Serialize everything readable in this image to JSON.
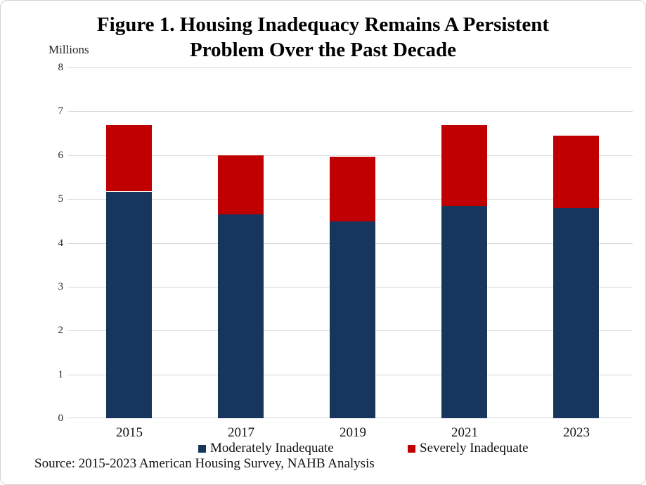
{
  "chart_data": {
    "type": "bar",
    "stacked": true,
    "title": "Figure 1. Housing Inadequacy Remains A Persistent Problem Over the Past Decade",
    "title_lines": [
      "Figure 1. Housing Inadequacy Remains A Persistent",
      "Problem Over the Past Decade"
    ],
    "axis_unit_label": "Millions",
    "categories": [
      "2015",
      "2017",
      "2019",
      "2021",
      "2023"
    ],
    "series": [
      {
        "name": "Moderately Inadequate",
        "color": "#17365D",
        "values": [
          5.17,
          4.65,
          4.49,
          4.84,
          4.8
        ]
      },
      {
        "name": "Severely Inadequate",
        "color": "#C00000",
        "values": [
          1.51,
          1.35,
          1.47,
          1.85,
          1.65
        ]
      }
    ],
    "totals": [
      6.68,
      6.0,
      5.96,
      6.69,
      6.45
    ],
    "ylim": [
      0,
      8
    ],
    "ytick_step": 1,
    "yticks": [
      8,
      7,
      6,
      5,
      4,
      3,
      2,
      1,
      0
    ],
    "grid": true,
    "legend_position": "bottom",
    "colors": {
      "gridline": "#d9d9d9",
      "title_text": "#000000",
      "tick_text": "#262626"
    }
  },
  "source_note": "Source: 2015-2023 American Housing Survey, NAHB Analysis"
}
